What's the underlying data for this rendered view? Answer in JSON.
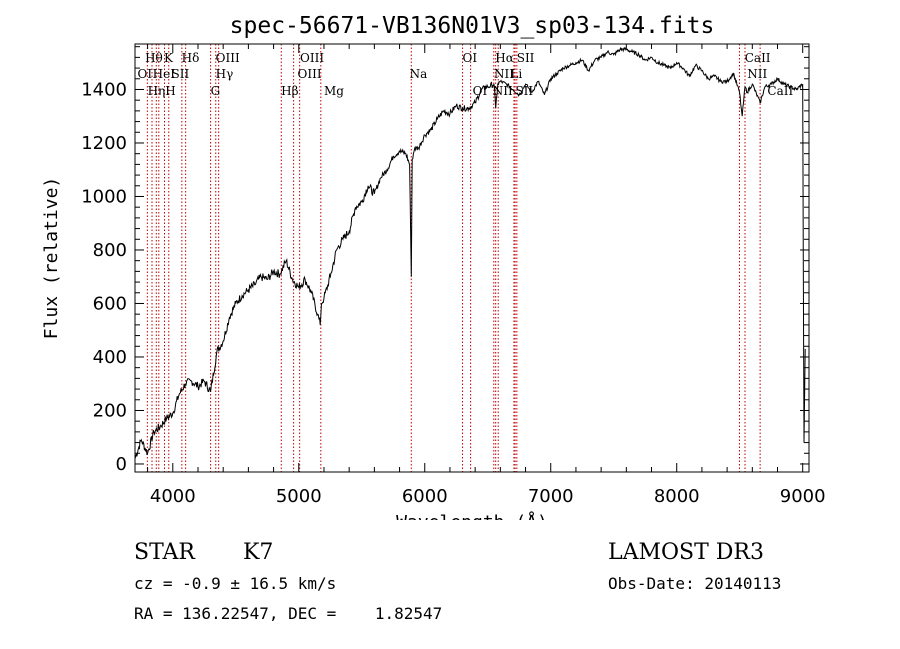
{
  "chart_data": {
    "type": "line",
    "title": "spec-56671-VB136N01V3_sp03-134.fits",
    "xlabel": "Wavelength (Å)",
    "ylabel": "Flux (relative)",
    "xlim": [
      3700,
      9050
    ],
    "ylim": [
      -30,
      1570
    ],
    "x_ticks": [
      4000,
      5000,
      6000,
      7000,
      8000,
      9000
    ],
    "y_ticks": [
      0,
      200,
      400,
      600,
      800,
      1000,
      1200,
      1400
    ],
    "x_tick_labels": [
      "4000",
      "5000",
      "6000",
      "7000",
      "8000",
      "9000"
    ],
    "y_tick_labels": [
      "0",
      "200",
      "400",
      "600",
      "800",
      "1000",
      "1200",
      "1400"
    ],
    "series": [
      {
        "name": "flux",
        "color": "#000000",
        "x": [
          3700,
          3750,
          3800,
          3850,
          3900,
          3950,
          4000,
          4050,
          4100,
          4150,
          4200,
          4250,
          4300,
          4350,
          4400,
          4450,
          4500,
          4550,
          4600,
          4650,
          4700,
          4750,
          4800,
          4850,
          4900,
          4950,
          5000,
          5050,
          5100,
          5150,
          5170,
          5180,
          5200,
          5250,
          5300,
          5350,
          5400,
          5450,
          5500,
          5550,
          5600,
          5650,
          5700,
          5750,
          5800,
          5850,
          5880,
          5893,
          5900,
          5920,
          5950,
          6000,
          6050,
          6100,
          6150,
          6200,
          6250,
          6300,
          6350,
          6400,
          6450,
          6500,
          6550,
          6563,
          6580,
          6600,
          6650,
          6700,
          6750,
          6800,
          6850,
          6900,
          6950,
          7000,
          7050,
          7100,
          7150,
          7200,
          7250,
          7300,
          7350,
          7400,
          7450,
          7500,
          7550,
          7600,
          7650,
          7700,
          7750,
          7800,
          7850,
          7900,
          7950,
          8000,
          8050,
          8100,
          8150,
          8200,
          8250,
          8300,
          8350,
          8400,
          8450,
          8498,
          8520,
          8542,
          8560,
          8600,
          8662,
          8700,
          8750,
          8800,
          8850,
          8900,
          8950,
          9000,
          9010,
          9020
        ],
        "y": [
          20,
          90,
          40,
          120,
          140,
          170,
          190,
          260,
          300,
          310,
          290,
          310,
          270,
          420,
          460,
          550,
          600,
          630,
          650,
          670,
          700,
          690,
          720,
          710,
          760,
          690,
          660,
          690,
          640,
          560,
          520,
          600,
          620,
          700,
          800,
          840,
          870,
          960,
          980,
          1040,
          1010,
          1070,
          1100,
          1150,
          1170,
          1160,
          1120,
          700,
          1140,
          1180,
          1180,
          1230,
          1250,
          1290,
          1320,
          1310,
          1340,
          1330,
          1330,
          1350,
          1400,
          1410,
          1420,
          1330,
          1420,
          1430,
          1420,
          1400,
          1380,
          1420,
          1390,
          1430,
          1380,
          1440,
          1460,
          1480,
          1490,
          1500,
          1510,
          1470,
          1510,
          1520,
          1540,
          1530,
          1550,
          1550,
          1540,
          1530,
          1510,
          1520,
          1500,
          1490,
          1480,
          1500,
          1480,
          1450,
          1490,
          1470,
          1440,
          1450,
          1430,
          1430,
          1460,
          1390,
          1300,
          1410,
          1390,
          1420,
          1350,
          1410,
          1420,
          1440,
          1420,
          1410,
          1400,
          1420,
          80,
          430
        ]
      }
    ],
    "lines": [
      {
        "x": 3798,
        "label": "Hθ"
      },
      {
        "x": 3835,
        "label": "Hη"
      },
      {
        "x": 3869,
        "label": "HeI"
      },
      {
        "x": 3889,
        "label": "HeI"
      },
      {
        "x": 3934,
        "label": "K"
      },
      {
        "x": 3968,
        "label": "H"
      },
      {
        "x": 4072,
        "label": "SII"
      },
      {
        "x": 4102,
        "label": "Hδ"
      },
      {
        "x": 4300,
        "label": "G"
      },
      {
        "x": 4341,
        "label": "Hγ"
      },
      {
        "x": 4364,
        "label": "OIII"
      },
      {
        "x": 4861,
        "label": "Hβ"
      },
      {
        "x": 4959,
        "label": "OIII"
      },
      {
        "x": 5007,
        "label": "OIII"
      },
      {
        "x": 5175,
        "label": "Mg"
      },
      {
        "x": 5893,
        "label": "Na"
      },
      {
        "x": 6300,
        "label": "OI"
      },
      {
        "x": 6364,
        "label": "OI"
      },
      {
        "x": 6548,
        "label": "NII"
      },
      {
        "x": 6563,
        "label": "Hα"
      },
      {
        "x": 6583,
        "label": "NII"
      },
      {
        "x": 6708,
        "label": "Li"
      },
      {
        "x": 6717,
        "label": "SII"
      },
      {
        "x": 6731,
        "label": "SII"
      },
      {
        "x": 8498,
        "label": "CaII"
      },
      {
        "x": 8542,
        "label": "CaII"
      },
      {
        "x": 8662,
        "label": "CaII"
      }
    ],
    "line_labels": [
      {
        "text": "Hθ",
        "row": 1,
        "x": 3780
      },
      {
        "text": "K",
        "row": 1,
        "x": 3930
      },
      {
        "text": "Hδ",
        "row": 1,
        "x": 4070
      },
      {
        "text": "OIII",
        "row": 1,
        "x": 4340
      },
      {
        "text": "OIII",
        "row": 1,
        "x": 5010
      },
      {
        "text": "OI",
        "row": 1,
        "x": 6300
      },
      {
        "text": "Hα",
        "row": 1,
        "x": 6560
      },
      {
        "text": "SII",
        "row": 1,
        "x": 6730
      },
      {
        "text": "CaII",
        "row": 1,
        "x": 8540
      },
      {
        "text": "OI",
        "row": 2,
        "x": 3720
      },
      {
        "text": "HeI",
        "row": 2,
        "x": 3840
      },
      {
        "text": "SII",
        "row": 2,
        "x": 3990
      },
      {
        "text": "Hγ",
        "row": 2,
        "x": 4340
      },
      {
        "text": "OIII",
        "row": 2,
        "x": 4990
      },
      {
        "text": "Na",
        "row": 2,
        "x": 5880
      },
      {
        "text": "NII",
        "row": 2,
        "x": 6550
      },
      {
        "text": "Li",
        "row": 2,
        "x": 6680
      },
      {
        "text": "NII",
        "row": 2,
        "x": 8560
      },
      {
        "text": "HηH",
        "row": 3,
        "x": 3800
      },
      {
        "text": "G",
        "row": 3,
        "x": 4300
      },
      {
        "text": "Hβ",
        "row": 3,
        "x": 4860
      },
      {
        "text": "Mg",
        "row": 3,
        "x": 5200
      },
      {
        "text": "OI",
        "row": 3,
        "x": 6380
      },
      {
        "text": "NII",
        "row": 3,
        "x": 6540
      },
      {
        "text": "SII",
        "row": 3,
        "x": 6720
      },
      {
        "text": "CaII",
        "row": 3,
        "x": 8720
      }
    ]
  },
  "info": {
    "object_class": "STAR",
    "subclass": "K7",
    "survey": "LAMOST DR3",
    "redshift": "cz = -0.9 ± 16.5 km/s",
    "obs_date": "Obs-Date: 20140113",
    "coords": "RA = 136.22547, DEC =    1.82547"
  },
  "colors": {
    "axis": "#000000",
    "spectrum": "#000000",
    "line_marker": "#c00000"
  }
}
